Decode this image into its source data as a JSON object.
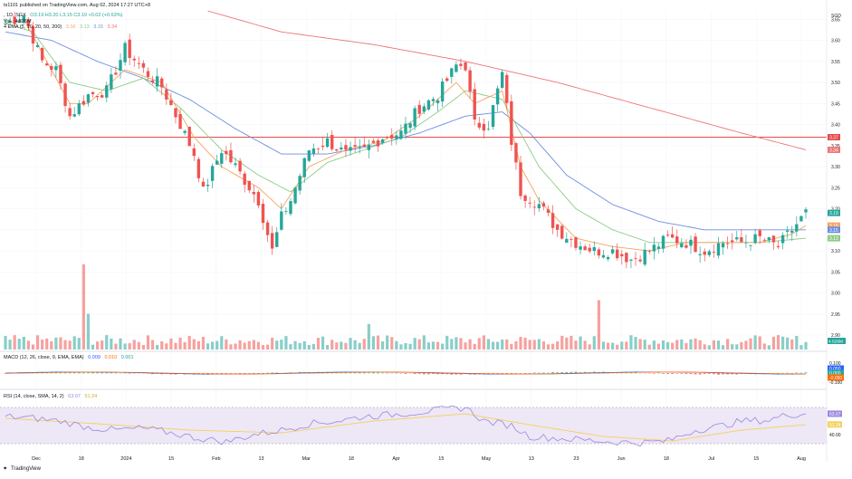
{
  "header": {
    "published_by": "ts1101 published on TradingView.com, Aug 02, 2024 17:27 UTC+8",
    "symbol_line": ", 1D, SGX",
    "ohlc": "O3.19  H3.20  L3.15  C3.19  +0.02 (+0.63%)",
    "vol_label": "Vol",
    "vol_value": "4.526M",
    "ema_label": "4 EMA (5, 10, 20, 50, 200)",
    "ema_values": [
      "3.16",
      "3.13",
      "3.15",
      "3.34"
    ],
    "macd_label": "MACD (12, 26, close, 9, EMA, EMA)",
    "macd_values": [
      "0.009",
      "0.010",
      "0.001"
    ],
    "rsi_label": "RSI (14, close, SMA, 14, 2)",
    "rsi_values": [
      "63.07",
      "51.24"
    ]
  },
  "footer": {
    "brand": "TradingView"
  },
  "colors": {
    "up": "#26a69a",
    "down": "#ef5350",
    "ema5": "#f7a35c",
    "ema10": "#8fcc85",
    "ema20": "#6c8ee0",
    "ema200": "#ef7373",
    "hline": "#e54b4b",
    "rsi": "#9b87e0",
    "rsi_ma": "#f5d15c",
    "rsi_band": "#ede7f6"
  },
  "chart_data": [
    {
      "type": "candlestick",
      "name": "price",
      "x_ticks": [
        "Dec",
        "18",
        "2024",
        "15",
        "Feb",
        "13",
        "Mar",
        "18",
        "Apr",
        "15",
        "May",
        "13",
        "23",
        "Jun",
        "18",
        "Jul",
        "15",
        "Aug"
      ],
      "y_ticks": [
        "3.65",
        "3.60",
        "3.55",
        "3.50",
        "3.45",
        "3.40",
        "3.35",
        "3.30",
        "3.25",
        "3.20",
        "3.15",
        "3.10",
        "3.05",
        "3.00",
        "2.95",
        "2.90"
      ],
      "ylim": [
        2.87,
        3.67
      ],
      "currency": "SGD",
      "horizontal_line": 3.37,
      "price_tags": [
        {
          "label": "3.37",
          "color": "#e54b4b"
        },
        {
          "label": "3.34",
          "color": "#ef7373"
        },
        {
          "label": "3.19",
          "color": "#26a69a"
        },
        {
          "label": "3.16",
          "color": "#f7a35c"
        },
        {
          "label": "3.15",
          "color": "#6c8ee0"
        },
        {
          "label": "3.13",
          "color": "#8fcc85"
        }
      ],
      "anchors_close": [
        [
          0,
          3.64
        ],
        [
          4,
          3.66
        ],
        [
          8,
          3.55
        ],
        [
          11,
          3.53
        ],
        [
          14,
          3.42
        ],
        [
          18,
          3.47
        ],
        [
          22,
          3.48
        ],
        [
          26,
          3.58
        ],
        [
          30,
          3.53
        ],
        [
          34,
          3.49
        ],
        [
          38,
          3.4
        ],
        [
          41,
          3.33
        ],
        [
          43,
          3.24
        ],
        [
          47,
          3.34
        ],
        [
          50,
          3.3
        ],
        [
          55,
          3.22
        ],
        [
          58,
          3.1
        ],
        [
          60,
          3.18
        ],
        [
          62,
          3.22
        ],
        [
          66,
          3.34
        ],
        [
          70,
          3.36
        ],
        [
          74,
          3.33
        ],
        [
          78,
          3.34
        ],
        [
          82,
          3.37
        ],
        [
          86,
          3.38
        ],
        [
          90,
          3.44
        ],
        [
          94,
          3.47
        ],
        [
          98,
          3.54
        ],
        [
          100,
          3.54
        ],
        [
          102,
          3.4
        ],
        [
          105,
          3.4
        ],
        [
          108,
          3.52
        ],
        [
          110,
          3.36
        ],
        [
          112,
          3.24
        ],
        [
          116,
          3.21
        ],
        [
          120,
          3.15
        ],
        [
          124,
          3.12
        ],
        [
          128,
          3.1
        ],
        [
          132,
          3.1
        ],
        [
          136,
          3.08
        ],
        [
          140,
          3.1
        ],
        [
          144,
          3.13
        ],
        [
          148,
          3.12
        ],
        [
          152,
          3.1
        ],
        [
          156,
          3.12
        ],
        [
          160,
          3.12
        ],
        [
          164,
          3.13
        ],
        [
          168,
          3.11
        ],
        [
          171,
          3.15
        ],
        [
          174,
          3.19
        ]
      ],
      "anchors_ema5": [
        [
          0,
          3.64
        ],
        [
          4,
          3.65
        ],
        [
          8,
          3.57
        ],
        [
          14,
          3.45
        ],
        [
          18,
          3.45
        ],
        [
          26,
          3.53
        ],
        [
          34,
          3.5
        ],
        [
          41,
          3.37
        ],
        [
          47,
          3.3
        ],
        [
          55,
          3.25
        ],
        [
          60,
          3.2
        ],
        [
          66,
          3.3
        ],
        [
          74,
          3.34
        ],
        [
          82,
          3.36
        ],
        [
          90,
          3.42
        ],
        [
          98,
          3.5
        ],
        [
          102,
          3.45
        ],
        [
          108,
          3.48
        ],
        [
          112,
          3.3
        ],
        [
          116,
          3.22
        ],
        [
          124,
          3.13
        ],
        [
          132,
          3.11
        ],
        [
          140,
          3.1
        ],
        [
          148,
          3.12
        ],
        [
          156,
          3.12
        ],
        [
          164,
          3.12
        ],
        [
          171,
          3.14
        ],
        [
          174,
          3.16
        ]
      ],
      "anchors_ema10": [
        [
          0,
          3.64
        ],
        [
          6,
          3.62
        ],
        [
          14,
          3.5
        ],
        [
          22,
          3.48
        ],
        [
          30,
          3.51
        ],
        [
          38,
          3.44
        ],
        [
          47,
          3.34
        ],
        [
          55,
          3.28
        ],
        [
          62,
          3.24
        ],
        [
          70,
          3.31
        ],
        [
          78,
          3.34
        ],
        [
          86,
          3.37
        ],
        [
          94,
          3.43
        ],
        [
          100,
          3.48
        ],
        [
          108,
          3.46
        ],
        [
          112,
          3.38
        ],
        [
          116,
          3.3
        ],
        [
          124,
          3.2
        ],
        [
          132,
          3.15
        ],
        [
          140,
          3.12
        ],
        [
          148,
          3.12
        ],
        [
          156,
          3.12
        ],
        [
          164,
          3.12
        ],
        [
          174,
          3.13
        ]
      ],
      "anchors_ema20": [
        [
          0,
          3.62
        ],
        [
          10,
          3.6
        ],
        [
          20,
          3.55
        ],
        [
          30,
          3.51
        ],
        [
          40,
          3.46
        ],
        [
          50,
          3.39
        ],
        [
          60,
          3.33
        ],
        [
          70,
          3.33
        ],
        [
          80,
          3.35
        ],
        [
          90,
          3.38
        ],
        [
          100,
          3.42
        ],
        [
          108,
          3.43
        ],
        [
          114,
          3.38
        ],
        [
          122,
          3.28
        ],
        [
          132,
          3.21
        ],
        [
          142,
          3.17
        ],
        [
          152,
          3.15
        ],
        [
          162,
          3.15
        ],
        [
          174,
          3.15
        ]
      ],
      "anchors_ema200": [
        [
          44,
          3.67
        ],
        [
          60,
          3.62
        ],
        [
          80,
          3.59
        ],
        [
          100,
          3.55
        ],
        [
          120,
          3.5
        ],
        [
          140,
          3.44
        ],
        [
          160,
          3.38
        ],
        [
          174,
          3.34
        ]
      ]
    },
    {
      "type": "bar",
      "name": "volume",
      "last_value": "4.526M",
      "spike_bars": [
        [
          17,
          1.0
        ],
        [
          18,
          0.42
        ],
        [
          129,
          0.58
        ],
        [
          79,
          0.3
        ]
      ]
    },
    {
      "type": "histogram",
      "name": "MACD",
      "y_ticks": [
        "0.100",
        "0.050",
        "0.000",
        "-0.050",
        "-0.100"
      ],
      "last_values": [
        "0.009",
        "0.010",
        "0.001"
      ]
    },
    {
      "type": "line",
      "name": "RSI",
      "y_ticks": [
        "63.07",
        "51.24",
        "40.00"
      ],
      "band": [
        30,
        70
      ],
      "ylim": [
        25,
        80
      ],
      "anchors_rsi": [
        [
          0,
          60
        ],
        [
          6,
          58
        ],
        [
          12,
          55
        ],
        [
          18,
          48
        ],
        [
          24,
          45
        ],
        [
          30,
          47
        ],
        [
          36,
          42
        ],
        [
          42,
          36
        ],
        [
          48,
          32
        ],
        [
          54,
          40
        ],
        [
          60,
          45
        ],
        [
          66,
          52
        ],
        [
          72,
          55
        ],
        [
          78,
          60
        ],
        [
          84,
          62
        ],
        [
          90,
          65
        ],
        [
          96,
          68
        ],
        [
          100,
          70
        ],
        [
          104,
          55
        ],
        [
          110,
          50
        ],
        [
          114,
          38
        ],
        [
          120,
          36
        ],
        [
          126,
          34
        ],
        [
          132,
          32
        ],
        [
          138,
          31
        ],
        [
          144,
          33
        ],
        [
          150,
          45
        ],
        [
          156,
          50
        ],
        [
          160,
          55
        ],
        [
          166,
          56
        ],
        [
          170,
          62
        ],
        [
          174,
          63
        ]
      ],
      "anchors_rsi_ma": [
        [
          0,
          58
        ],
        [
          20,
          52
        ],
        [
          40,
          45
        ],
        [
          60,
          42
        ],
        [
          80,
          55
        ],
        [
          100,
          63
        ],
        [
          115,
          50
        ],
        [
          130,
          38
        ],
        [
          145,
          33
        ],
        [
          160,
          45
        ],
        [
          174,
          51
        ]
      ]
    }
  ]
}
